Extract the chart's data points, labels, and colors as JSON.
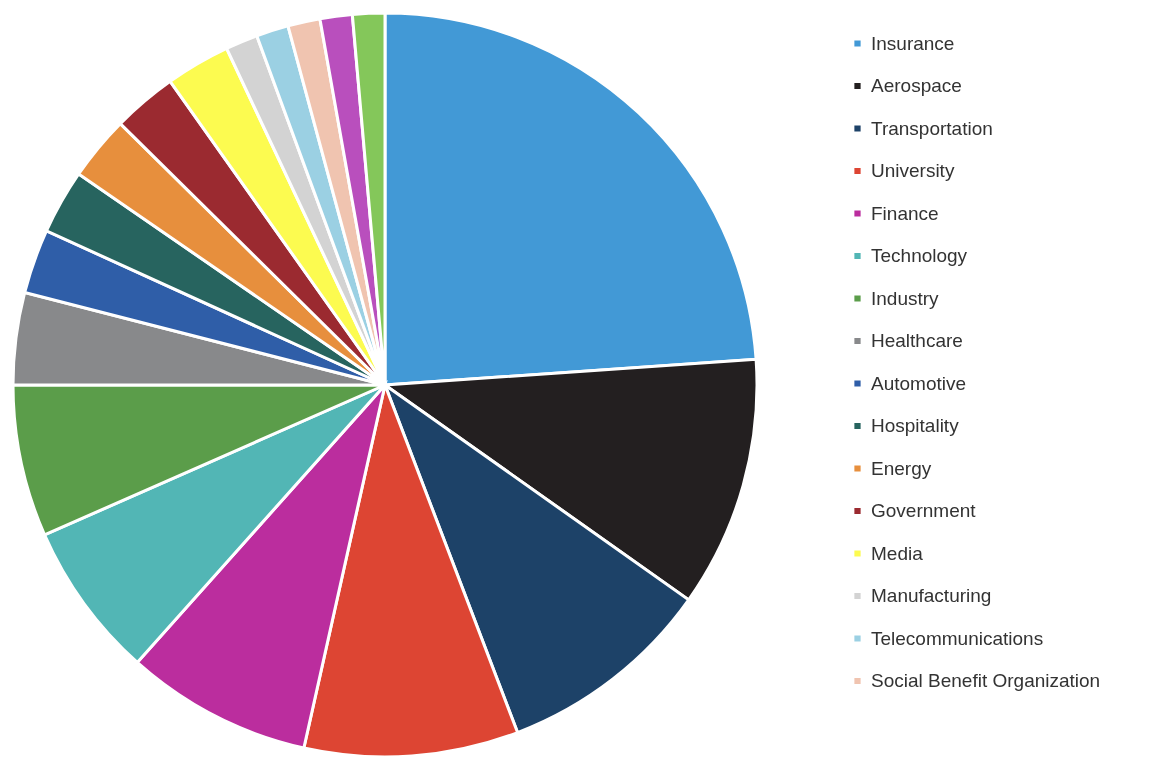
{
  "chart_data": {
    "type": "pie",
    "categories": [
      "Insurance",
      "Aerospace",
      "Transportation",
      "University",
      "Finance",
      "Technology",
      "Industry",
      "Healthcare",
      "Automotive",
      "Hospitality",
      "Energy",
      "Government",
      "Media",
      "Manufacturing",
      "Telecommunications",
      "Social Benefit Organization",
      null,
      null
    ],
    "values": [
      23.9,
      10.9,
      9.4,
      9.3,
      8.1,
      6.8,
      6.6,
      4.0,
      2.8,
      2.8,
      2.8,
      2.8,
      2.8,
      1.4,
      1.4,
      1.4,
      1.4,
      1.4
    ],
    "colors": [
      "#4299d6",
      "#231f20",
      "#1d4268",
      "#dd4533",
      "#bb2d9e",
      "#52b6b5",
      "#5b9d4a",
      "#88898b",
      "#2f5ea8",
      "#27645f",
      "#e78f3d",
      "#9b2a30",
      "#fcfb50",
      "#d3d3d3",
      "#9bd0e3",
      "#f0c4b0",
      "#b94fbd",
      "#84c75a"
    ],
    "legend": "right"
  }
}
